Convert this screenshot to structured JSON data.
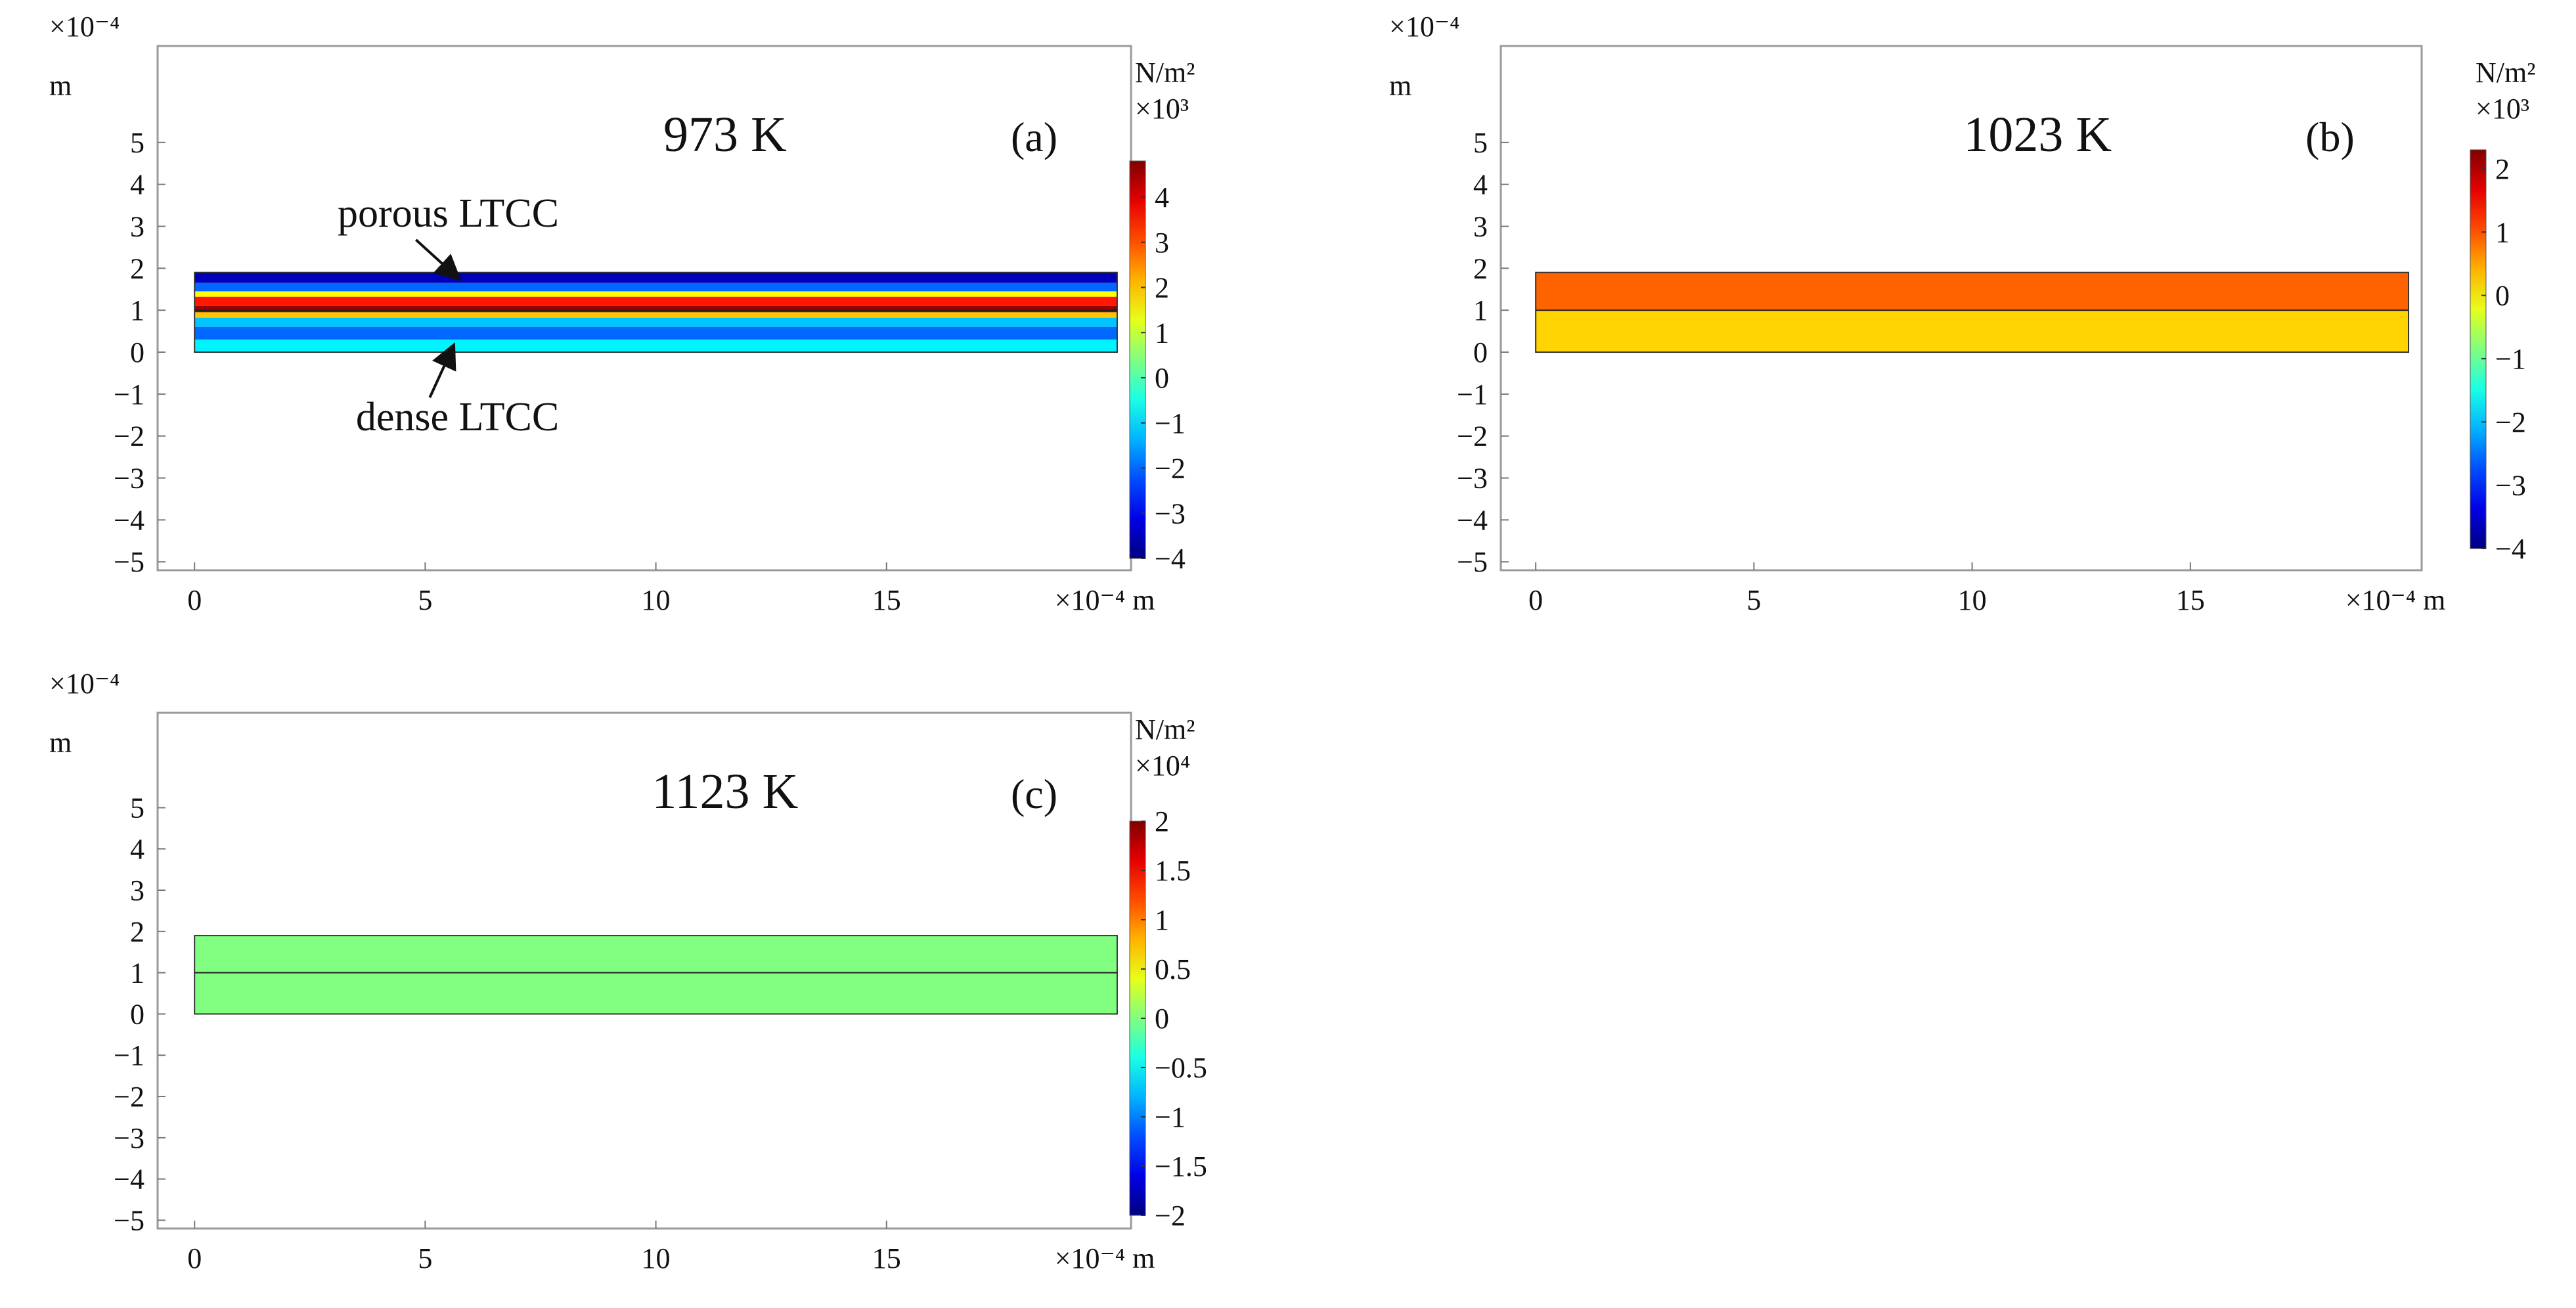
{
  "chart_data": [
    {
      "type": "heatmap",
      "panel_label": "(a)",
      "title": "973 K",
      "x_multiplier": "×10⁻⁴ m",
      "y_multiplier": "×10⁻⁴",
      "y_unit": "m",
      "xlim": [
        -0.8,
        20.3
      ],
      "ylim": [
        -5.2,
        7.3
      ],
      "x_ticks": [
        0,
        5,
        10,
        15
      ],
      "y_ticks": [
        5,
        4,
        3,
        2,
        1,
        0,
        -1,
        -2,
        -3,
        -4,
        -5
      ],
      "domain_x": [
        0,
        20
      ],
      "domain_y": [
        0,
        1.9
      ],
      "interface_y": 1.0,
      "colorbar": {
        "unit": "N/m²",
        "multiplier": "×10³",
        "min": -4,
        "max": 4.8,
        "ticks": [
          4,
          3,
          2,
          1,
          0,
          -1,
          -2,
          -3,
          -4
        ]
      },
      "bands": [
        {
          "y0": 1.65,
          "y1": 1.9,
          "value": -3.5
        },
        {
          "y0": 1.45,
          "y1": 1.65,
          "value": -2.0
        },
        {
          "y0": 1.32,
          "y1": 1.45,
          "value": 1.5
        },
        {
          "y0": 1.1,
          "y1": 1.32,
          "value": 3.5
        },
        {
          "y0": 0.95,
          "y1": 1.1,
          "value": 4.6
        },
        {
          "y0": 0.82,
          "y1": 0.95,
          "value": 2.0
        },
        {
          "y0": 0.6,
          "y1": 0.82,
          "value": -1.2
        },
        {
          "y0": 0.3,
          "y1": 0.6,
          "value": -2.0
        },
        {
          "y0": 0.0,
          "y1": 0.3,
          "value": -0.8
        }
      ],
      "annotations": [
        "porous LTCC",
        "dense LTCC"
      ]
    },
    {
      "type": "heatmap",
      "panel_label": "(b)",
      "title": "1023 K",
      "x_multiplier": "×10⁻⁴ m",
      "y_multiplier": "×10⁻⁴",
      "y_unit": "m",
      "xlim": [
        -0.8,
        20.3
      ],
      "ylim": [
        -5.2,
        7.3
      ],
      "x_ticks": [
        0,
        5,
        10,
        15
      ],
      "y_ticks": [
        5,
        4,
        3,
        2,
        1,
        0,
        -1,
        -2,
        -3,
        -4,
        -5
      ],
      "domain_x": [
        0,
        20
      ],
      "domain_y": [
        0,
        1.9
      ],
      "interface_y": 1.0,
      "colorbar": {
        "unit": "N/m²",
        "multiplier": "×10³",
        "min": -4,
        "max": 2.3,
        "ticks": [
          2,
          1,
          0,
          -1,
          -2,
          -3,
          -4
        ]
      },
      "bands": [
        {
          "y0": 1.0,
          "y1": 1.9,
          "value": 0.9
        },
        {
          "y0": 0.0,
          "y1": 1.0,
          "value": 0.2
        }
      ],
      "annotations": []
    },
    {
      "type": "heatmap",
      "panel_label": "(c)",
      "title": "1123 K",
      "x_multiplier": "×10⁻⁴ m",
      "y_multiplier": "×10⁻⁴",
      "y_unit": "m",
      "xlim": [
        -0.8,
        20.3
      ],
      "ylim": [
        -5.2,
        7.3
      ],
      "x_ticks": [
        0,
        5,
        10,
        15
      ],
      "y_ticks": [
        5,
        4,
        3,
        2,
        1,
        0,
        -1,
        -2,
        -3,
        -4,
        -5
      ],
      "domain_x": [
        0,
        20
      ],
      "domain_y": [
        0,
        1.9
      ],
      "interface_y": 1.0,
      "colorbar": {
        "unit": "N/m²",
        "multiplier": "×10⁴",
        "min": -2,
        "max": 2,
        "ticks": [
          2,
          1.5,
          1,
          0.5,
          0,
          -0.5,
          -1,
          -1.5,
          -2
        ]
      },
      "bands": [
        {
          "y0": 0.0,
          "y1": 1.9,
          "value": 0.0
        }
      ],
      "annotations": []
    }
  ]
}
